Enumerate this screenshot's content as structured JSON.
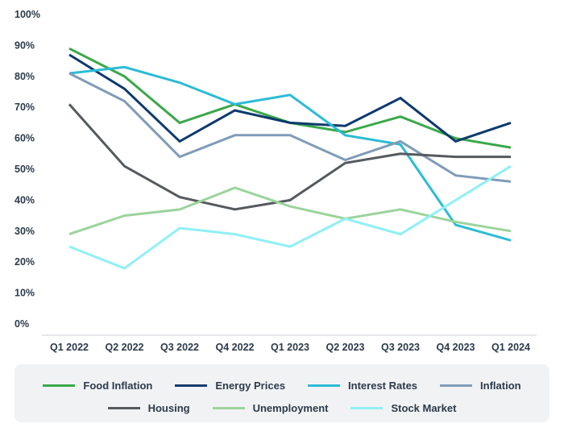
{
  "chart_data": {
    "type": "line",
    "categories": [
      "Q1 2022",
      "Q2 2022",
      "Q3 2022",
      "Q4 2022",
      "Q1 2023",
      "Q2 2023",
      "Q3 2023",
      "Q4 2023",
      "Q1 2024"
    ],
    "ylim": [
      0,
      100
    ],
    "yticks": [
      0,
      10,
      20,
      30,
      40,
      50,
      60,
      70,
      80,
      90,
      100
    ],
    "ytick_labels": [
      "0%",
      "10%",
      "20%",
      "30%",
      "40%",
      "50%",
      "60%",
      "70%",
      "80%",
      "90%",
      "100%"
    ],
    "grid": false,
    "legend_position": "bottom",
    "series": [
      {
        "name": "Food Inflation",
        "color": "#3aa84a",
        "values": [
          89,
          80,
          65,
          71,
          65,
          62,
          67,
          60,
          57
        ]
      },
      {
        "name": "Energy Prices",
        "color": "#0d3a6e",
        "values": [
          87,
          76,
          59,
          69,
          65,
          64,
          73,
          59,
          65
        ]
      },
      {
        "name": "Interest Rates",
        "color": "#2bbcd6",
        "values": [
          81,
          83,
          78,
          71,
          74,
          61,
          58,
          32,
          27
        ]
      },
      {
        "name": "Inflation",
        "color": "#7f9cb8",
        "values": [
          81,
          72,
          54,
          61,
          61,
          53,
          59,
          48,
          46
        ]
      },
      {
        "name": "Housing",
        "color": "#555a5e",
        "values": [
          71,
          51,
          41,
          37,
          40,
          52,
          55,
          54,
          54
        ]
      },
      {
        "name": "Unemployment",
        "color": "#9bd49b",
        "values": [
          29,
          35,
          37,
          44,
          38,
          34,
          37,
          33,
          30
        ]
      },
      {
        "name": "Stock Market",
        "color": "#8ff0f5",
        "values": [
          25,
          18,
          31,
          29,
          25,
          34,
          29,
          40,
          51
        ]
      }
    ]
  }
}
